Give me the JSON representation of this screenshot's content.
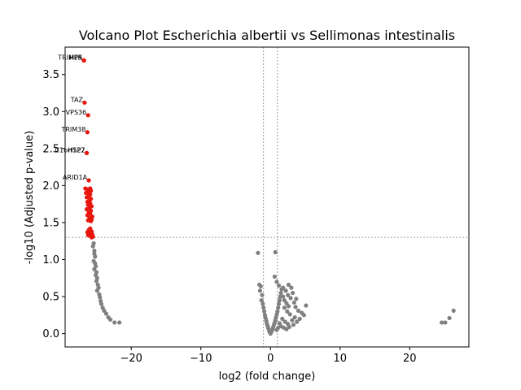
{
  "chart_data": {
    "type": "scatter",
    "title": "Volcano Plot Escherichia albertii vs Sellimonas intestinalis",
    "xlabel": "log2 (fold change)",
    "ylabel": "-log10 (Adjusted p-value)",
    "xlim": [
      -29.5,
      28.5
    ],
    "ylim": [
      -0.18,
      3.87
    ],
    "x_ticks": [
      -20,
      -10,
      0,
      10,
      20
    ],
    "x_tick_labels": [
      "−20",
      "−10",
      "0",
      "10",
      "20"
    ],
    "y_ticks": [
      0.0,
      0.5,
      1.0,
      1.5,
      2.0,
      2.5,
      3.0,
      3.5
    ],
    "y_tick_labels": [
      "0.0",
      "0.5",
      "1.0",
      "1.5",
      "2.0",
      "2.5",
      "3.0",
      "3.5"
    ],
    "grid": false,
    "threshold_lines": {
      "y": 1.3,
      "x": [
        -1,
        1
      ]
    },
    "colors": {
      "significant": "#e8160c",
      "nonsignificant": "#808080",
      "threshold": "#808080"
    },
    "significant_points": [
      {
        "x": -26.8,
        "y": 3.69,
        "label": "TRIM25"
      },
      {
        "x": -26.8,
        "y": 3.69,
        "label": "HPS"
      },
      {
        "x": -26.8,
        "y": 3.69,
        "label": "HPR"
      },
      {
        "x": -26.7,
        "y": 3.12,
        "label": "TAZ"
      },
      {
        "x": -26.2,
        "y": 2.95,
        "label": "VPS36"
      },
      {
        "x": -26.3,
        "y": 2.72,
        "label": "TRIM38"
      },
      {
        "x": -26.4,
        "y": 2.44,
        "label": "C1orf122"
      },
      {
        "x": -26.4,
        "y": 2.44,
        "label": "HSP7"
      },
      {
        "x": -26.1,
        "y": 2.07,
        "label": "ARID1A"
      },
      {
        "x": -25.9,
        "y": 1.96
      },
      {
        "x": -26.3,
        "y": 1.95
      },
      {
        "x": -26.6,
        "y": 1.96
      },
      {
        "x": -25.8,
        "y": 1.93
      },
      {
        "x": -26.2,
        "y": 1.91
      },
      {
        "x": -26.5,
        "y": 1.9
      },
      {
        "x": -25.9,
        "y": 1.88
      },
      {
        "x": -26.1,
        "y": 1.86
      },
      {
        "x": -26.4,
        "y": 1.84
      },
      {
        "x": -25.8,
        "y": 1.82
      },
      {
        "x": -26.0,
        "y": 1.8
      },
      {
        "x": -26.3,
        "y": 1.78
      },
      {
        "x": -25.9,
        "y": 1.76
      },
      {
        "x": -26.2,
        "y": 1.74
      },
      {
        "x": -25.7,
        "y": 1.72
      },
      {
        "x": -26.0,
        "y": 1.7
      },
      {
        "x": -26.4,
        "y": 1.68
      },
      {
        "x": -25.8,
        "y": 1.66
      },
      {
        "x": -26.1,
        "y": 1.64
      },
      {
        "x": -25.9,
        "y": 1.62
      },
      {
        "x": -26.3,
        "y": 1.6
      },
      {
        "x": -25.6,
        "y": 1.58
      },
      {
        "x": -26.0,
        "y": 1.56
      },
      {
        "x": -25.7,
        "y": 1.54
      },
      {
        "x": -26.2,
        "y": 1.53
      },
      {
        "x": -25.8,
        "y": 1.52
      },
      {
        "x": -25.9,
        "y": 1.42
      },
      {
        "x": -26.1,
        "y": 1.4
      },
      {
        "x": -25.7,
        "y": 1.38
      },
      {
        "x": -26.3,
        "y": 1.37
      },
      {
        "x": -25.8,
        "y": 1.36
      },
      {
        "x": -26.0,
        "y": 1.35
      },
      {
        "x": -25.6,
        "y": 1.34
      },
      {
        "x": -26.2,
        "y": 1.33
      },
      {
        "x": -25.9,
        "y": 1.32
      },
      {
        "x": -25.5,
        "y": 1.31
      },
      {
        "x": -25.7,
        "y": 1.3
      }
    ],
    "nonsignificant_points": [
      {
        "x": -25.4,
        "y": 1.22
      },
      {
        "x": -25.5,
        "y": 1.18
      },
      {
        "x": -25.3,
        "y": 1.12
      },
      {
        "x": -25.3,
        "y": 1.08
      },
      {
        "x": -25.2,
        "y": 1.04
      },
      {
        "x": -25.4,
        "y": 0.98
      },
      {
        "x": -25.2,
        "y": 0.95
      },
      {
        "x": -25.1,
        "y": 0.91
      },
      {
        "x": -25.3,
        "y": 0.87
      },
      {
        "x": -25.0,
        "y": 0.83
      },
      {
        "x": -25.1,
        "y": 0.79
      },
      {
        "x": -24.9,
        "y": 0.75
      },
      {
        "x": -25.0,
        "y": 0.71
      },
      {
        "x": -24.8,
        "y": 0.66
      },
      {
        "x": -24.7,
        "y": 0.62
      },
      {
        "x": -24.9,
        "y": 0.58
      },
      {
        "x": -24.6,
        "y": 0.53
      },
      {
        "x": -24.5,
        "y": 0.49
      },
      {
        "x": -24.4,
        "y": 0.44
      },
      {
        "x": -24.3,
        "y": 0.4
      },
      {
        "x": -24.1,
        "y": 0.35
      },
      {
        "x": -23.9,
        "y": 0.31
      },
      {
        "x": -23.6,
        "y": 0.27
      },
      {
        "x": -23.3,
        "y": 0.22
      },
      {
        "x": -23.0,
        "y": 0.19
      },
      {
        "x": -22.4,
        "y": 0.15
      },
      {
        "x": -21.7,
        "y": 0.15
      },
      {
        "x": -1.8,
        "y": 1.09
      },
      {
        "x": 0.7,
        "y": 1.1
      },
      {
        "x": -1.6,
        "y": 0.66
      },
      {
        "x": -1.4,
        "y": 0.64
      },
      {
        "x": -1.5,
        "y": 0.58
      },
      {
        "x": -1.2,
        "y": 0.52
      },
      {
        "x": -1.3,
        "y": 0.45
      },
      {
        "x": -1.1,
        "y": 0.4
      },
      {
        "x": -1.0,
        "y": 0.35
      },
      {
        "x": -0.9,
        "y": 0.3
      },
      {
        "x": -0.8,
        "y": 0.25
      },
      {
        "x": -0.7,
        "y": 0.21
      },
      {
        "x": -0.6,
        "y": 0.17
      },
      {
        "x": -0.5,
        "y": 0.13
      },
      {
        "x": -0.4,
        "y": 0.1
      },
      {
        "x": -0.3,
        "y": 0.07
      },
      {
        "x": -0.2,
        "y": 0.04
      },
      {
        "x": -0.1,
        "y": 0.02
      },
      {
        "x": 0.0,
        "y": 0.0
      },
      {
        "x": 0.1,
        "y": 0.02
      },
      {
        "x": 0.2,
        "y": 0.04
      },
      {
        "x": 0.3,
        "y": 0.06
      },
      {
        "x": 0.4,
        "y": 0.09
      },
      {
        "x": 0.5,
        "y": 0.12
      },
      {
        "x": 0.6,
        "y": 0.15
      },
      {
        "x": 0.7,
        "y": 0.18
      },
      {
        "x": 0.8,
        "y": 0.22
      },
      {
        "x": 0.9,
        "y": 0.26
      },
      {
        "x": 1.0,
        "y": 0.3
      },
      {
        "x": 1.1,
        "y": 0.35
      },
      {
        "x": 1.2,
        "y": 0.4
      },
      {
        "x": 1.3,
        "y": 0.45
      },
      {
        "x": 1.4,
        "y": 0.5
      },
      {
        "x": 1.5,
        "y": 0.55
      },
      {
        "x": 1.6,
        "y": 0.6
      },
      {
        "x": 0.6,
        "y": 0.77
      },
      {
        "x": 0.9,
        "y": 0.7
      },
      {
        "x": 1.2,
        "y": 0.65
      },
      {
        "x": 1.8,
        "y": 0.62
      },
      {
        "x": 2.2,
        "y": 0.58
      },
      {
        "x": 2.6,
        "y": 0.66
      },
      {
        "x": 3.0,
        "y": 0.62
      },
      {
        "x": 3.2,
        "y": 0.55
      },
      {
        "x": 2.9,
        "y": 0.48
      },
      {
        "x": 3.4,
        "y": 0.42
      },
      {
        "x": 3.6,
        "y": 0.36
      },
      {
        "x": 4.0,
        "y": 0.31
      },
      {
        "x": 4.5,
        "y": 0.28
      },
      {
        "x": 5.1,
        "y": 0.38
      },
      {
        "x": 4.8,
        "y": 0.25
      },
      {
        "x": 2.0,
        "y": 0.35
      },
      {
        "x": 2.4,
        "y": 0.3
      },
      {
        "x": 2.8,
        "y": 0.26
      },
      {
        "x": 1.7,
        "y": 0.2
      },
      {
        "x": 2.1,
        "y": 0.16
      },
      {
        "x": 2.5,
        "y": 0.13
      },
      {
        "x": 3.1,
        "y": 0.18
      },
      {
        "x": 3.5,
        "y": 0.22
      },
      {
        "x": 1.5,
        "y": 0.1
      },
      {
        "x": 1.9,
        "y": 0.08
      },
      {
        "x": 2.3,
        "y": 0.06
      },
      {
        "x": 2.7,
        "y": 0.09
      },
      {
        "x": 3.3,
        "y": 0.12
      },
      {
        "x": 3.8,
        "y": 0.16
      },
      {
        "x": 4.2,
        "y": 0.2
      },
      {
        "x": 1.3,
        "y": 0.14
      },
      {
        "x": 1.1,
        "y": 0.08
      },
      {
        "x": 0.9,
        "y": 0.05
      },
      {
        "x": 2.0,
        "y": 0.45
      },
      {
        "x": 2.3,
        "y": 0.41
      },
      {
        "x": 2.6,
        "y": 0.37
      },
      {
        "x": 1.8,
        "y": 0.5
      },
      {
        "x": 2.5,
        "y": 0.52
      },
      {
        "x": 3.7,
        "y": 0.47
      },
      {
        "x": 24.6,
        "y": 0.15
      },
      {
        "x": 25.1,
        "y": 0.15
      },
      {
        "x": 25.7,
        "y": 0.21
      },
      {
        "x": 26.3,
        "y": 0.31
      }
    ]
  }
}
